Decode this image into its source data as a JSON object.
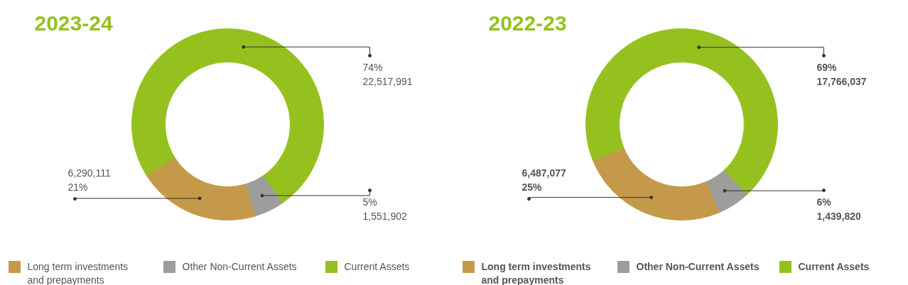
{
  "chart_data": [
    {
      "type": "donut",
      "title": "2023-24",
      "categories": [
        "Long term investments and prepayments",
        "Other Non-Current Assets",
        "Current Assets"
      ],
      "values": [
        6290111,
        1551902,
        22517991
      ],
      "colors": [
        "#c49a4a",
        "#9d9d9c",
        "#95c11f"
      ],
      "value_labels": [
        "6,290,111\n21%",
        "5%\n1,551,902",
        "74%\n22,517,991"
      ],
      "legend": "bottom"
    },
    {
      "type": "donut",
      "title": "2022-23",
      "categories": [
        "Long term investments and prepayments",
        "Other Non-Current Assets",
        "Current Assets"
      ],
      "values": [
        6487077,
        1439820,
        17766037
      ],
      "colors": [
        "#c49a4a",
        "#9d9d9c",
        "#95c11f"
      ],
      "value_labels": [
        "6,487,077\n25%",
        "6%\n1,439,820",
        "69%\n17,766,037"
      ],
      "legend": "bottom"
    }
  ]
}
